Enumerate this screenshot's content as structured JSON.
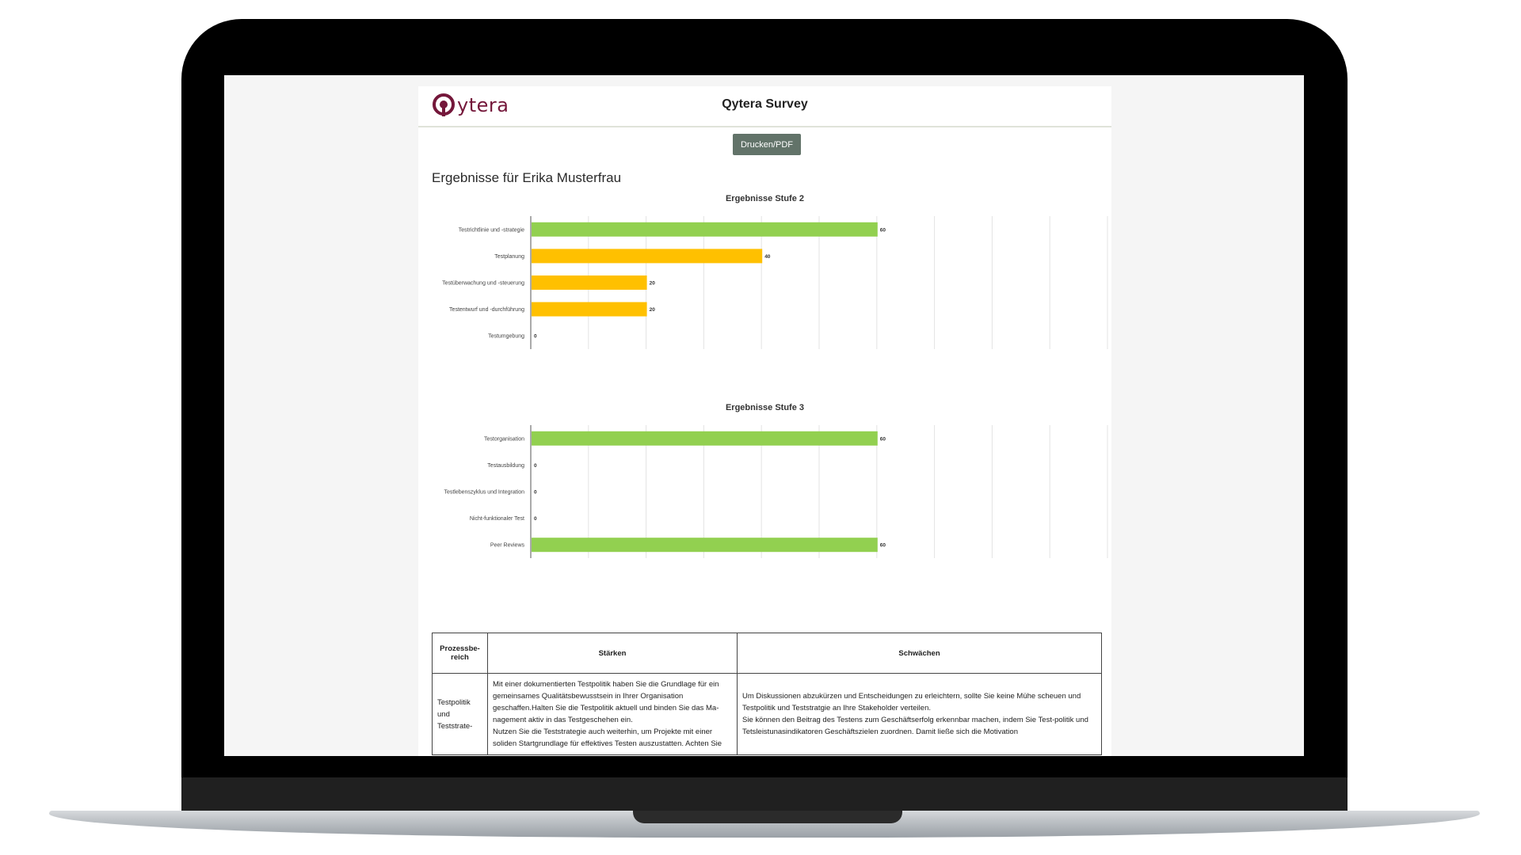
{
  "header": {
    "brand": "ytera",
    "title": "Qytera Survey"
  },
  "print_button": "Drucken/PDF",
  "results_heading": "Ergebnisse für Erika Musterfrau",
  "colors": {
    "green": "#92d050",
    "yellow": "#ffc000",
    "brand": "#74173a",
    "button": "#627369"
  },
  "chart_data": [
    {
      "type": "bar",
      "orientation": "horizontal",
      "title": "Ergebnisse Stufe 2",
      "categories": [
        "Testrichtlinie und -strategie",
        "Testplanung",
        "Testüberwachung und -steuerung",
        "Testentwurf und -durchführung",
        "Testumgebung"
      ],
      "values": [
        60,
        40,
        20,
        20,
        0
      ],
      "colors": [
        "#92d050",
        "#ffc000",
        "#ffc000",
        "#ffc000",
        "#ffc000"
      ],
      "xlim": [
        0,
        100
      ],
      "xticks": [
        0,
        10,
        20,
        30,
        40,
        50,
        60,
        70,
        80,
        90,
        100
      ],
      "grid": true,
      "data_labels": true
    },
    {
      "type": "bar",
      "orientation": "horizontal",
      "title": "Ergebnisse Stufe 3",
      "categories": [
        "Testorganisation",
        "Testausbildung",
        "Testlebenszyklus und Integration",
        "Nicht-funktionaler Test",
        "Peer Reviews"
      ],
      "values": [
        60,
        0,
        0,
        0,
        60
      ],
      "colors": [
        "#92d050",
        "#92d050",
        "#92d050",
        "#92d050",
        "#92d050"
      ],
      "xlim": [
        0,
        100
      ],
      "xticks": [
        0,
        10,
        20,
        30,
        40,
        50,
        60,
        70,
        80,
        90,
        100
      ],
      "grid": true,
      "data_labels": true
    }
  ],
  "table": {
    "headers": [
      "Prozessbe-reich",
      "Stärken",
      "Schwächen"
    ],
    "rows": [
      {
        "area": "Testpolitik und Teststrate-",
        "strengths": [
          "Mit einer dokumentierten Testpolitik haben Sie die Grundlage für ein gemeinsames Qualitätsbewusstsein in Ihrer Organisation geschaffen.Halten Sie die Testpolitik aktuell und binden Sie das Ma-nagement aktiv in das Testgeschehen ein.",
          "Nutzen Sie die Teststrategie auch weiterhin, um Projekte mit einer soliden Startgrundlage für effektives Testen auszustatten. Achten Sie"
        ],
        "weaknesses": [
          "Um Diskussionen abzukürzen und Entscheidungen zu erleichtern, sollte Sie keine Mühe scheuen und Testpolitik und Teststratgie an Ihre Stakeholder verteilen.",
          "Sie können den Beitrag des Testens zum Geschäftserfolg erkennbar machen, indem Sie Test-politik und Tetsleistunasindikatoren Geschäftszielen zuordnen. Damit ließe sich die Motivation"
        ]
      }
    ]
  }
}
